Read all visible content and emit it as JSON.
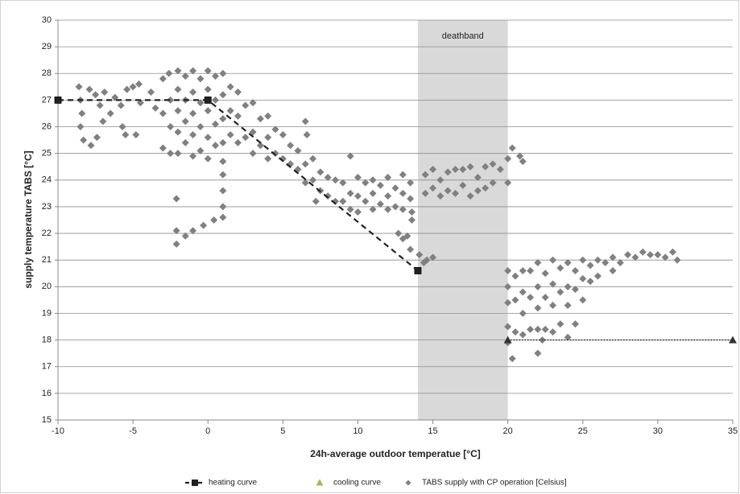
{
  "chart_data": {
    "type": "scatter",
    "xlabel": "24h-average outdoor temperatue [°C]",
    "ylabel": "supply temperature TABS [°C]",
    "xlim": [
      -10,
      35
    ],
    "xticks": [
      -10,
      -5,
      0,
      5,
      10,
      15,
      20,
      25,
      30,
      35
    ],
    "ylim": [
      15,
      30
    ],
    "yticks": [
      15,
      16,
      17,
      18,
      19,
      20,
      21,
      22,
      23,
      24,
      25,
      26,
      27,
      28,
      29,
      30
    ],
    "grid": true,
    "legend": "bottom",
    "deadband": {
      "label": "deathband",
      "range": [
        14,
        20
      ],
      "color": "#d9d9d9"
    },
    "series": [
      {
        "name": "heating curve",
        "type": "line",
        "style": "dashed",
        "marker": "square",
        "color": "#222222",
        "x": [
          -10,
          0,
          14
        ],
        "values": [
          27,
          27,
          20.6
        ]
      },
      {
        "name": "cooling curve",
        "type": "line",
        "style": "dotted",
        "marker": "triangle",
        "color": "#333333",
        "legend_color": "#9bbb59",
        "x": [
          20,
          35
        ],
        "values": [
          18,
          18
        ]
      },
      {
        "name": "TABS supply with CP operation [Celsius]",
        "type": "scatter",
        "marker": "diamond",
        "color": "#808080",
        "x": [
          -8.6,
          -8.5,
          -8.4,
          -8.5,
          -8.3,
          -7.8,
          -7.9,
          -7.5,
          -7.2,
          -7.0,
          -7.4,
          -6.9,
          -6.5,
          -6.2,
          -5.8,
          -5.7,
          -5.4,
          -5,
          -4.6,
          -4.5,
          -4.8,
          -5.5,
          -3.8,
          -3.5,
          -3,
          -3,
          -3,
          -2.6,
          -2.5,
          -2.5,
          -2.5,
          -2,
          -2,
          -2,
          -2,
          -2,
          -1.5,
          -1.5,
          -1.5,
          -1.5,
          -1,
          -1,
          -1,
          -1,
          -1,
          -0.5,
          -0.5,
          -0.5,
          -0.5,
          0,
          0,
          0,
          0,
          0,
          0.5,
          0.5,
          0.5,
          0.5,
          1,
          1,
          1,
          1,
          1,
          1.5,
          1.5,
          1.5,
          2,
          2,
          2,
          -2.1,
          1,
          1,
          1,
          1,
          -2.1,
          -1.5,
          -1,
          -0.3,
          0.4,
          -2.1,
          2.5,
          2.5,
          3,
          3,
          3,
          3.5,
          3.5,
          4,
          4,
          4,
          4.5,
          4.5,
          5,
          5,
          5.5,
          5.5,
          6,
          6,
          6.5,
          6.6,
          6.5,
          6.5,
          7,
          7,
          7.2,
          7.5,
          7.5,
          8,
          8,
          8.5,
          8.5,
          9,
          9,
          9.5,
          9.5,
          9.5,
          10,
          10,
          10,
          10.5,
          10.5,
          11,
          11,
          11,
          11.5,
          11.5,
          12,
          12,
          12,
          12.5,
          12.5,
          13,
          13,
          13,
          13.5,
          13.5,
          13.6,
          12.7,
          13,
          13.3,
          13.5,
          13.6,
          14.1,
          14.6,
          15,
          14.4,
          14.5,
          14.5,
          15,
          15,
          15.5,
          15.5,
          16,
          16,
          16.5,
          16.5,
          17,
          17,
          17.5,
          17.5,
          18,
          18,
          18.5,
          18.5,
          19,
          19,
          19.5,
          20,
          20,
          20.3,
          20.8,
          21,
          20,
          20,
          20,
          20,
          20,
          20.5,
          20.5,
          20.5,
          20.3,
          21,
          21,
          21,
          21,
          21.5,
          21.5,
          21.5,
          22,
          22,
          22,
          22,
          22.5,
          22.5,
          22.5,
          23,
          23,
          23,
          23,
          23.5,
          23.5,
          23.5,
          24,
          24,
          24,
          24,
          24.5,
          24.5,
          24.5,
          25,
          25,
          25,
          25.5,
          25.5,
          26,
          26,
          26.5,
          27,
          27,
          27.5,
          28,
          28.5,
          29,
          29.5,
          30,
          30.5,
          31,
          31.3,
          22,
          22.3
        ],
        "values": [
          27.5,
          27.0,
          26.5,
          26.0,
          25.5,
          25.3,
          27.4,
          27.2,
          26.8,
          26.2,
          25.6,
          27.3,
          26.5,
          27.1,
          26.8,
          26.0,
          27.4,
          27.5,
          27.6,
          26.9,
          25.7,
          25.7,
          27.3,
          26.7,
          27.8,
          26.5,
          25.2,
          28,
          27,
          26,
          25,
          28.1,
          27.4,
          26.6,
          25.8,
          25,
          27.9,
          27,
          26.2,
          25.4,
          28.1,
          27.3,
          26.5,
          25.7,
          24.9,
          27.8,
          26.9,
          26,
          25.1,
          28.1,
          27.4,
          26.6,
          25.6,
          24.8,
          27.9,
          27,
          26.1,
          25.3,
          28,
          27.2,
          26.3,
          25.4,
          24.7,
          27.5,
          26.6,
          25.7,
          27.3,
          26.4,
          25.4,
          23.3,
          24.2,
          23.6,
          23.0,
          22.6,
          21.6,
          21.9,
          22.1,
          22.3,
          22.5,
          22.1,
          26.8,
          25.6,
          26.9,
          25.8,
          25,
          26.3,
          25.3,
          26.4,
          25.6,
          24.8,
          25.9,
          25,
          25.7,
          24.8,
          25.3,
          24.6,
          25.1,
          24.4,
          26.2,
          25.7,
          24.6,
          23.9,
          24.8,
          24,
          23.2,
          24.3,
          23.6,
          24.1,
          23.4,
          24,
          23.2,
          23.9,
          23.2,
          24.9,
          23.5,
          22.9,
          24.1,
          23.4,
          22.8,
          23.9,
          23.2,
          24,
          23.5,
          22.9,
          23.8,
          23.1,
          24.1,
          23.4,
          22.9,
          23.7,
          23.0,
          24.2,
          23.5,
          22.9,
          23.9,
          23.3,
          22.8,
          22,
          21.8,
          21.9,
          21.4,
          22.5,
          21.2,
          21.0,
          21.1,
          20.9,
          24.2,
          23.5,
          24.4,
          23.7,
          24,
          23.4,
          24.3,
          23.6,
          24.4,
          23.5,
          24.4,
          23.8,
          24.5,
          23.4,
          24.1,
          23.6,
          24.5,
          23.7,
          24.6,
          23.9,
          24.4,
          23.9,
          24.8,
          25.2,
          24.9,
          24.7,
          20.6,
          20.0,
          19.4,
          18.5,
          17.9,
          20.4,
          19.5,
          18.3,
          17.3,
          20.6,
          19.8,
          19.0,
          18.2,
          20.6,
          19.6,
          18.4,
          20.9,
          20,
          19.2,
          18.4,
          20.5,
          19.6,
          18.4,
          21,
          20.1,
          19.3,
          18.3,
          20.7,
          19.8,
          18.6,
          20.9,
          20,
          19.3,
          18.1,
          20.6,
          19.9,
          18.6,
          21,
          20.3,
          19.5,
          20.8,
          20.2,
          21,
          20.4,
          20.9,
          21.1,
          20.6,
          20.9,
          21.2,
          21.1,
          21.3,
          21.2,
          21.2,
          21.1,
          21.3,
          21,
          17.5,
          18.0
        ]
      }
    ]
  }
}
